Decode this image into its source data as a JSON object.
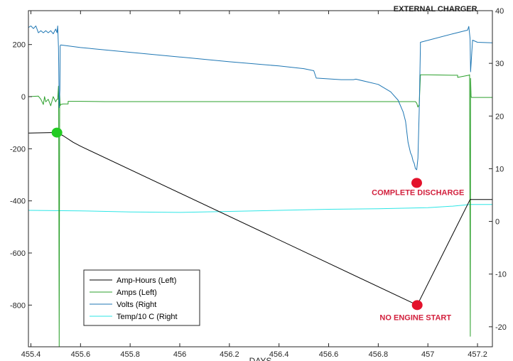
{
  "chart_data": {
    "type": "line",
    "title": "",
    "xlabel": "DAYS",
    "ylabel_left": "",
    "ylabel_right": "",
    "xlim": [
      455.39,
      457.26
    ],
    "ylim_left": [
      -960,
      330
    ],
    "ylim_right": [
      -23.8,
      40
    ],
    "xticks": [
      455.4,
      455.6,
      455.8,
      456,
      456.2,
      456.4,
      456.6,
      456.8,
      457,
      457.2
    ],
    "xtick_labels": [
      "455.4",
      "455.6",
      "455.8",
      "456",
      "456.2",
      "456.4",
      "456.6",
      "456.8",
      "457",
      "457.2"
    ],
    "yticks_left": [
      200,
      0,
      -200,
      -400,
      -600,
      -800
    ],
    "ytick_labels_left": [
      "200",
      "0",
      "-200",
      "-400",
      "-600",
      "-800"
    ],
    "yticks_right": [
      40,
      30,
      20,
      10,
      0,
      -10,
      -20
    ],
    "ytick_labels_right": [
      "40",
      "30",
      "20",
      "10",
      "0",
      "-10",
      "-20"
    ],
    "grid": false,
    "legend_position": "bottom-left",
    "series": [
      {
        "name": "Amp-Hours (Left)",
        "color": "#000000",
        "axis": "left",
        "x": [
          455.39,
          455.48,
          455.505,
          455.53,
          455.57,
          455.6,
          456.957,
          457.17,
          457.26
        ],
        "y": [
          -140,
          -138,
          -138,
          -150,
          -175,
          -190,
          -800,
          -395,
          -395
        ]
      },
      {
        "name": "Amps (Left)",
        "color": "#2ca02c",
        "axis": "left",
        "x": [
          455.39,
          455.43,
          455.44,
          455.45,
          455.455,
          455.46,
          455.47,
          455.48,
          455.49,
          455.5,
          455.505,
          455.508,
          455.511,
          455.512,
          455.514,
          455.516,
          455.518,
          455.52,
          455.53,
          455.55,
          455.55,
          455.6,
          455.7,
          455.8,
          456,
          456.2,
          456.4,
          456.6,
          456.8,
          456.9,
          456.95,
          456.955,
          456.96,
          456.965,
          456.97,
          456.97,
          457.0,
          457.1,
          457.12,
          457.12,
          457.165,
          457.168,
          457.171,
          457.172,
          457.174,
          457.176,
          457.18,
          457.2,
          457.26
        ],
        "y": [
          0,
          2,
          -10,
          -30,
          0,
          -20,
          -10,
          -35,
          0,
          -20,
          -10,
          -10,
          40,
          -60,
          -960,
          10,
          -35,
          -30,
          -28,
          -28,
          -18,
          -18,
          -19,
          -19,
          -19,
          -19,
          -19,
          -19,
          -19,
          -19,
          -19,
          -25,
          -40,
          -30,
          80,
          84,
          84,
          82,
          82,
          74,
          82,
          84,
          -920,
          70,
          0,
          -3,
          -3,
          -3,
          -3
        ]
      },
      {
        "name": "Volts (Right",
        "color": "#1f77b4",
        "axis": "right",
        "x": [
          455.39,
          455.4,
          455.41,
          455.42,
          455.43,
          455.44,
          455.45,
          455.46,
          455.47,
          455.48,
          455.49,
          455.5,
          455.505,
          455.508,
          455.511,
          455.512,
          455.514,
          455.517,
          455.518,
          455.52,
          455.6,
          455.8,
          456,
          456.2,
          456.4,
          456.5,
          456.54,
          456.55,
          456.65,
          456.7,
          456.71,
          456.8,
          456.85,
          456.88,
          456.9,
          456.91,
          456.92,
          456.93,
          456.935,
          456.94,
          456.945,
          456.95,
          456.955,
          456.96,
          456.965,
          456.97,
          456.97,
          457.1,
          457.16,
          457.165,
          457.17,
          457.172,
          457.18,
          457.2,
          457.26
        ],
        "y": [
          36.8,
          37.1,
          36.6,
          37.1,
          35.8,
          36.2,
          35.8,
          36.2,
          35.8,
          36.2,
          35.6,
          36.5,
          35.8,
          37.1,
          33,
          30,
          21.6,
          25,
          33.3,
          33.5,
          33.0,
          32.1,
          31.2,
          30.3,
          29.5,
          29.0,
          28.6,
          27.2,
          26.9,
          26.9,
          27.0,
          26.0,
          24.6,
          23.0,
          20.8,
          19.0,
          15.0,
          13.0,
          12.5,
          11.5,
          11.0,
          10.0,
          9.8,
          12.0,
          21.0,
          33.2,
          34.0,
          35.6,
          36.3,
          37.0,
          34.7,
          28.4,
          34.4,
          34.0,
          33.9
        ]
      },
      {
        "name": "Temp/10 C (Right",
        "color": "#2ee6e6",
        "axis": "right",
        "x": [
          455.39,
          455.6,
          455.8,
          456,
          456.2,
          456.4,
          456.6,
          456.8,
          457,
          457.1,
          457.17,
          457.26
        ],
        "y": [
          2.1,
          2.0,
          1.8,
          1.7,
          1.9,
          2.1,
          2.3,
          2.4,
          2.6,
          2.9,
          3.2,
          3.2
        ]
      }
    ],
    "markers": [
      {
        "color": "#22cc22",
        "axis": "left",
        "x": 455.505,
        "y": -138
      },
      {
        "color": "#e3122b",
        "axis": "left",
        "x": 456.957,
        "y": -800
      },
      {
        "color": "#e3122b",
        "axis": "left",
        "x": 456.955,
        "y": -331
      }
    ],
    "annotations": [
      {
        "text": "EXTERNAL CHARGER",
        "color": "#222222",
        "axis": "left",
        "x": 457.03,
        "y": 327
      },
      {
        "text": "COMPLETE DISCHARGE",
        "color": "#d21f3c",
        "axis": "left",
        "x": 456.96,
        "y": -378
      },
      {
        "text": "NO ENGINE START",
        "color": "#d21f3c",
        "axis": "left",
        "x": 456.95,
        "y": -858
      }
    ]
  }
}
